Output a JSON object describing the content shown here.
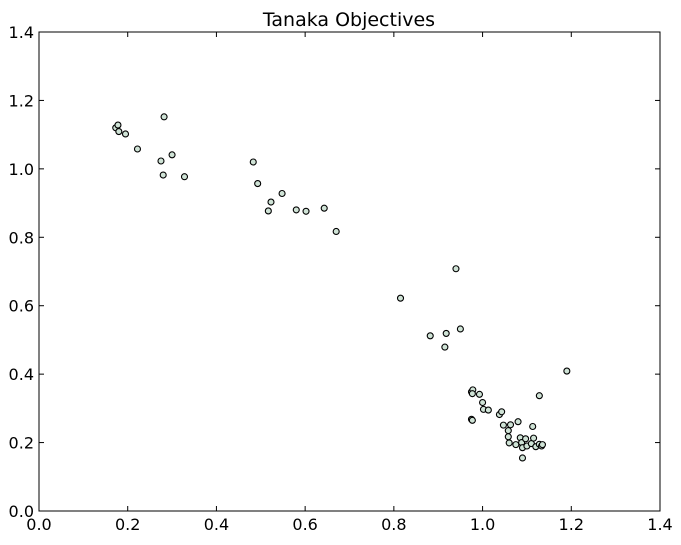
{
  "chart_data": {
    "type": "scatter",
    "title": "Tanaka Objectives",
    "xlabel": "",
    "ylabel": "",
    "xlim": [
      0.0,
      1.4
    ],
    "ylim": [
      0.0,
      1.4
    ],
    "xticks": [
      "0.0",
      "0.2",
      "0.4",
      "0.6",
      "0.8",
      "1.0",
      "1.2",
      "1.4"
    ],
    "yticks": [
      "0.0",
      "0.2",
      "0.4",
      "0.6",
      "0.8",
      "1.0",
      "1.2",
      "1.4"
    ],
    "grid": false,
    "legend": "none",
    "marker_fill": "#cfe3d6",
    "marker_edge": "#000000",
    "points": [
      [
        0.173,
        1.12
      ],
      [
        0.178,
        1.128
      ],
      [
        0.18,
        1.109
      ],
      [
        0.195,
        1.102
      ],
      [
        0.222,
        1.058
      ],
      [
        0.275,
        1.023
      ],
      [
        0.282,
        1.152
      ],
      [
        0.28,
        0.982
      ],
      [
        0.3,
        1.041
      ],
      [
        0.328,
        0.977
      ],
      [
        0.483,
        1.02
      ],
      [
        0.493,
        0.957
      ],
      [
        0.523,
        0.903
      ],
      [
        0.517,
        0.877
      ],
      [
        0.548,
        0.928
      ],
      [
        0.58,
        0.88
      ],
      [
        0.602,
        0.876
      ],
      [
        0.643,
        0.885
      ],
      [
        0.67,
        0.817
      ],
      [
        0.815,
        0.622
      ],
      [
        0.94,
        0.708
      ],
      [
        0.882,
        0.512
      ],
      [
        0.918,
        0.519
      ],
      [
        0.95,
        0.532
      ],
      [
        0.915,
        0.479
      ],
      [
        1.19,
        0.409
      ],
      [
        0.975,
        0.348
      ],
      [
        0.978,
        0.354
      ],
      [
        0.977,
        0.343
      ],
      [
        0.993,
        0.341
      ],
      [
        1.128,
        0.337
      ],
      [
        1.0,
        0.317
      ],
      [
        1.002,
        0.297
      ],
      [
        1.013,
        0.295
      ],
      [
        1.038,
        0.282
      ],
      [
        1.043,
        0.29
      ],
      [
        0.975,
        0.268
      ],
      [
        0.977,
        0.265
      ],
      [
        1.047,
        0.251
      ],
      [
        1.063,
        0.252
      ],
      [
        1.08,
        0.261
      ],
      [
        1.113,
        0.247
      ],
      [
        1.058,
        0.235
      ],
      [
        1.058,
        0.217
      ],
      [
        1.06,
        0.199
      ],
      [
        1.075,
        0.194
      ],
      [
        1.085,
        0.214
      ],
      [
        1.088,
        0.2
      ],
      [
        1.09,
        0.185
      ],
      [
        1.097,
        0.211
      ],
      [
        1.1,
        0.19
      ],
      [
        1.11,
        0.197
      ],
      [
        1.115,
        0.213
      ],
      [
        1.12,
        0.188
      ],
      [
        1.128,
        0.195
      ],
      [
        1.133,
        0.19
      ],
      [
        1.135,
        0.194
      ],
      [
        1.09,
        0.155
      ]
    ]
  }
}
